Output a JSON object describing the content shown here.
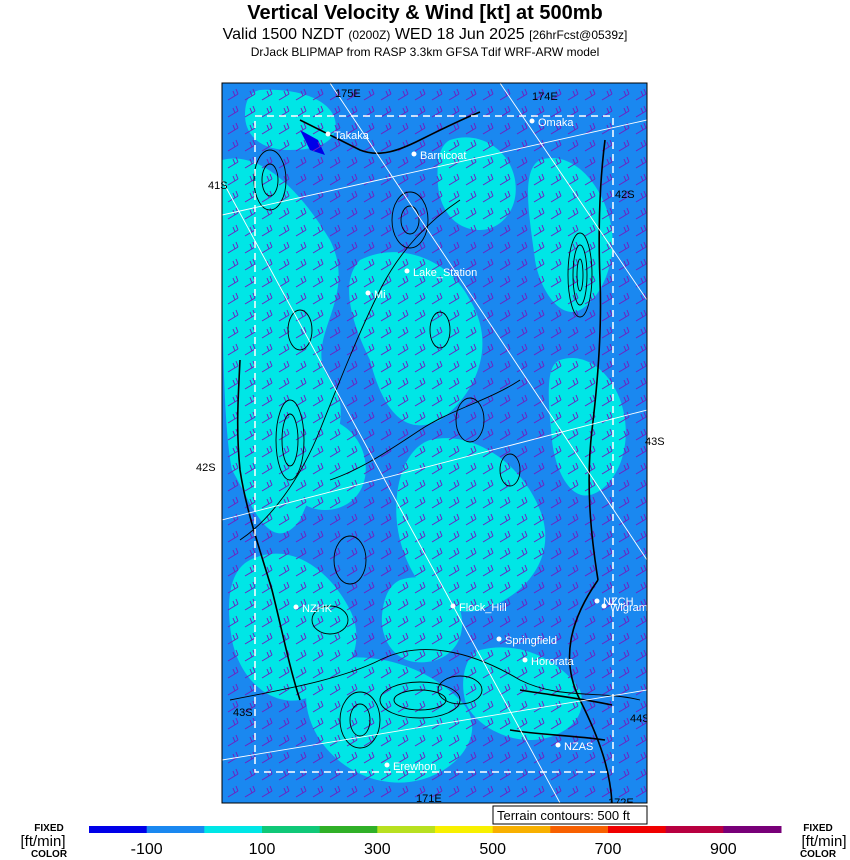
{
  "title": {
    "main": "Vertical Velocity & Wind [kt] at 500mb",
    "valid_prefix": "Valid 1500 NZDT",
    "utc": "(0200Z)",
    "date": "WED 18 Jun 2025",
    "forecast": "[26hrFcst@0539z]",
    "model": "DrJack BLIPMAP from RASP 3.3km GFSA Tdif WRF-ARW model"
  },
  "grid_labels": {
    "lat_left": [
      "41S",
      "42S",
      "43S"
    ],
    "lat_right": [
      "42S",
      "43S",
      "44S"
    ],
    "lon_top": [
      "175E",
      "174E"
    ],
    "lon_bottom": [
      "171E",
      "172E"
    ]
  },
  "places": [
    {
      "name": "Takaka"
    },
    {
      "name": "Omaka"
    },
    {
      "name": "Barnicoat"
    },
    {
      "name": "Lake_Station"
    },
    {
      "name": "Mi"
    },
    {
      "name": "NZHK"
    },
    {
      "name": "Flock_Hill"
    },
    {
      "name": "NZCH"
    },
    {
      "name": "Wigram"
    },
    {
      "name": "Springfield"
    },
    {
      "name": "Hororata"
    },
    {
      "name": "NZAS"
    },
    {
      "name": "Erewhon"
    }
  ],
  "terrain_note": "Terrain contours: 500 ft",
  "colorbar": {
    "left_label": [
      "FIXED",
      "[ft/min]",
      "COLOR"
    ],
    "right_label": [
      "FIXED",
      "[ft/min]",
      "COLOR"
    ],
    "ticks": [
      "-100",
      "100",
      "300",
      "500",
      "700",
      "900"
    ],
    "colors": [
      "#0000e8",
      "#1a88f0",
      "#00e6e6",
      "#10c878",
      "#30b028",
      "#b8e020",
      "#f8f000",
      "#f8b000",
      "#f86000",
      "#f00000",
      "#b80040",
      "#780078"
    ]
  }
}
